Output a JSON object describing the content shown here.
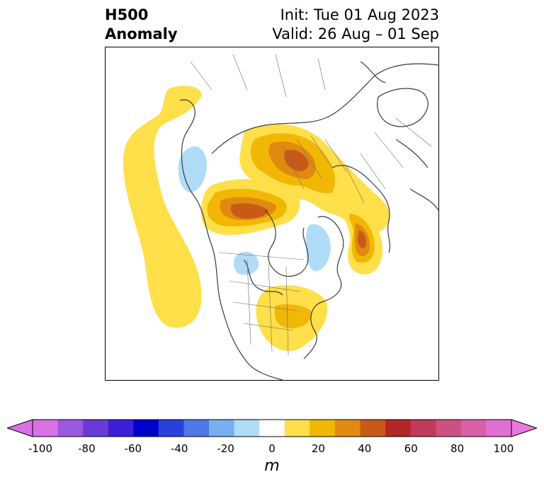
{
  "title": {
    "left_line1": "H500",
    "left_line2": "Anomaly",
    "right_line1": "Init: Tue 01 Aug 2023",
    "right_line2": "Valid: 26 Aug – 01 Sep"
  },
  "colorbar": {
    "units": "m",
    "ticks": [
      "-100",
      "-80",
      "-60",
      "-40",
      "-20",
      "0",
      "20",
      "40",
      "60",
      "80",
      "100"
    ],
    "colors": [
      "#d970e6",
      "#9b58e0",
      "#6a3ad8",
      "#3b1fd8",
      "#0000cc",
      "#2a40dd",
      "#4f78e8",
      "#79aef0",
      "#b0dcf8",
      "#ffffff",
      "#ffdf4a",
      "#f2b705",
      "#e08a10",
      "#c85a18",
      "#b22626",
      "#c03a5a",
      "#cc5080",
      "#d960a8",
      "#e070d0"
    ],
    "extend_low": "#d970e6",
    "extend_high": "#e878e0"
  }
}
